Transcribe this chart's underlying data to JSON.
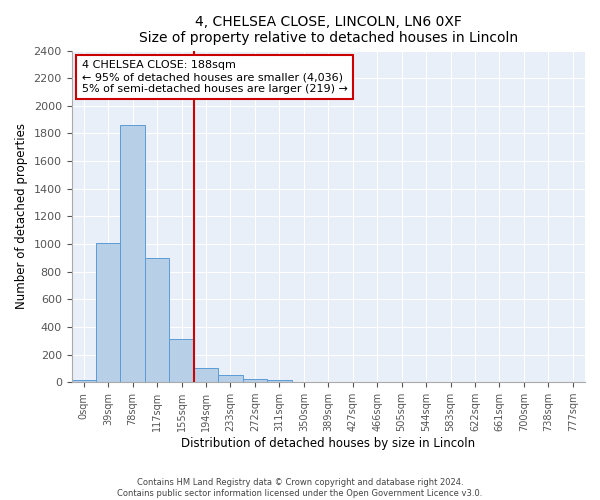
{
  "title": "4, CHELSEA CLOSE, LINCOLN, LN6 0XF",
  "subtitle": "Size of property relative to detached houses in Lincoln",
  "xlabel": "Distribution of detached houses by size in Lincoln",
  "ylabel": "Number of detached properties",
  "bar_labels": [
    "0sqm",
    "39sqm",
    "78sqm",
    "117sqm",
    "155sqm",
    "194sqm",
    "233sqm",
    "272sqm",
    "311sqm",
    "350sqm",
    "389sqm",
    "427sqm",
    "466sqm",
    "505sqm",
    "544sqm",
    "583sqm",
    "622sqm",
    "661sqm",
    "700sqm",
    "738sqm",
    "777sqm"
  ],
  "bar_values": [
    15,
    1010,
    1860,
    900,
    310,
    100,
    50,
    25,
    15,
    0,
    0,
    0,
    0,
    0,
    0,
    0,
    0,
    0,
    0,
    0,
    0
  ],
  "bar_color": "#b8cfe8",
  "bar_edgecolor": "#5b9bd5",
  "vline_x_label": "194sqm",
  "vline_x_index": 5,
  "vline_color": "#cc0000",
  "ylim": [
    0,
    2400
  ],
  "yticks": [
    0,
    200,
    400,
    600,
    800,
    1000,
    1200,
    1400,
    1600,
    1800,
    2000,
    2200,
    2400
  ],
  "annotation_title": "4 CHELSEA CLOSE: 188sqm",
  "annotation_line1": "← 95% of detached houses are smaller (4,036)",
  "annotation_line2": "5% of semi-detached houses are larger (219) →",
  "annotation_box_facecolor": "#ffffff",
  "annotation_box_edgecolor": "#cc0000",
  "footer_line1": "Contains HM Land Registry data © Crown copyright and database right 2024.",
  "footer_line2": "Contains public sector information licensed under the Open Government Licence v3.0.",
  "plot_bg_color": "#e8eff8",
  "fig_bg_color": "#ffffff",
  "grid_color": "#ffffff"
}
